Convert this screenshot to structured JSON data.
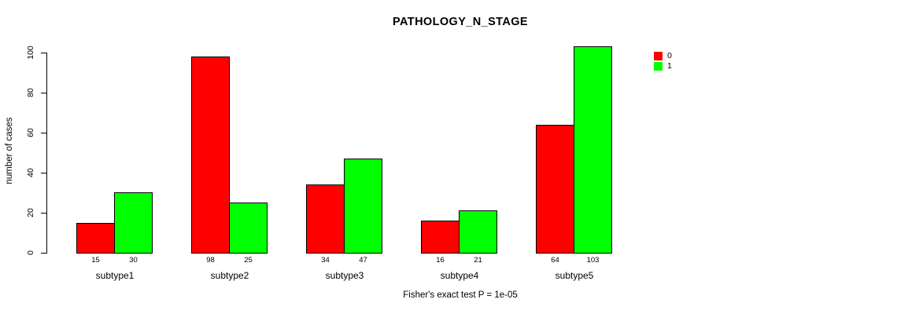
{
  "chart_data": {
    "type": "bar",
    "title": "PATHOLOGY_N_STAGE",
    "ylabel": "number of cases",
    "xlabel": "",
    "caption": "Fisher's exact test P = 1e-05",
    "categories": [
      "subtype1",
      "subtype2",
      "subtype3",
      "subtype4",
      "subtype5"
    ],
    "series": [
      {
        "name": "0",
        "color": "#ff0000",
        "values": [
          15,
          98,
          34,
          16,
          64
        ]
      },
      {
        "name": "1",
        "color": "#00ff00",
        "values": [
          30,
          25,
          47,
          21,
          103
        ]
      }
    ],
    "ylim": [
      0,
      100
    ],
    "yticks": [
      0,
      20,
      40,
      60,
      80,
      100
    ],
    "grid": false,
    "legend_position": "right",
    "background_color": "#ffffff",
    "axis_color": "#000000"
  }
}
